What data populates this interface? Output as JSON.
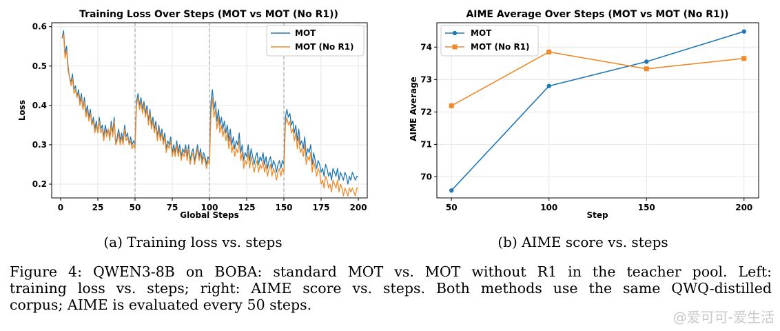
{
  "chart_data": [
    {
      "type": "line",
      "title": "Training Loss Over Steps (MOT vs MOT (No R1))",
      "xlabel": "Global Steps",
      "ylabel": "Loss",
      "xlim": [
        -6,
        206
      ],
      "ylim": [
        0.165,
        0.61
      ],
      "xticks": [
        0,
        25,
        50,
        75,
        100,
        125,
        150,
        175,
        200
      ],
      "yticks": [
        0.2,
        0.3,
        0.4,
        0.5,
        0.6
      ],
      "ytick_labels": [
        "0.2",
        "0.3",
        "0.4",
        "0.5",
        "0.6"
      ],
      "vlines": [
        50,
        100,
        150
      ],
      "grid": true,
      "legend_position": "top-right",
      "x": [
        1,
        2,
        3,
        4,
        5,
        6,
        7,
        8,
        9,
        10,
        11,
        12,
        13,
        14,
        15,
        16,
        17,
        18,
        19,
        20,
        21,
        22,
        23,
        24,
        25,
        26,
        27,
        28,
        29,
        30,
        31,
        32,
        33,
        34,
        35,
        36,
        37,
        38,
        39,
        40,
        41,
        42,
        43,
        44,
        45,
        46,
        47,
        48,
        49,
        50,
        51,
        52,
        53,
        54,
        55,
        56,
        57,
        58,
        59,
        60,
        61,
        62,
        63,
        64,
        65,
        66,
        67,
        68,
        69,
        70,
        71,
        72,
        73,
        74,
        75,
        76,
        77,
        78,
        79,
        80,
        81,
        82,
        83,
        84,
        85,
        86,
        87,
        88,
        89,
        90,
        91,
        92,
        93,
        94,
        95,
        96,
        97,
        98,
        99,
        100,
        101,
        102,
        103,
        104,
        105,
        106,
        107,
        108,
        109,
        110,
        111,
        112,
        113,
        114,
        115,
        116,
        117,
        118,
        119,
        120,
        121,
        122,
        123,
        124,
        125,
        126,
        127,
        128,
        129,
        130,
        131,
        132,
        133,
        134,
        135,
        136,
        137,
        138,
        139,
        140,
        141,
        142,
        143,
        144,
        145,
        146,
        147,
        148,
        149,
        150,
        151,
        152,
        153,
        154,
        155,
        156,
        157,
        158,
        159,
        160,
        161,
        162,
        163,
        164,
        165,
        166,
        167,
        168,
        169,
        170,
        171,
        172,
        173,
        174,
        175,
        176,
        177,
        178,
        179,
        180,
        181,
        182,
        183,
        184,
        185,
        186,
        187,
        188,
        189,
        190,
        191,
        192,
        193,
        194,
        195,
        196,
        197,
        198,
        199,
        200
      ],
      "series": [
        {
          "name": "MOT",
          "color": "#1f77b4",
          "values": [
            0.57,
            0.59,
            0.53,
            0.55,
            0.5,
            0.47,
            0.46,
            0.48,
            0.44,
            0.45,
            0.42,
            0.44,
            0.41,
            0.43,
            0.39,
            0.42,
            0.38,
            0.4,
            0.37,
            0.39,
            0.35,
            0.37,
            0.34,
            0.36,
            0.33,
            0.37,
            0.34,
            0.35,
            0.32,
            0.35,
            0.33,
            0.34,
            0.32,
            0.36,
            0.33,
            0.37,
            0.3,
            0.32,
            0.34,
            0.31,
            0.33,
            0.31,
            0.35,
            0.32,
            0.33,
            0.3,
            0.32,
            0.3,
            0.31,
            0.3,
            0.41,
            0.43,
            0.4,
            0.42,
            0.39,
            0.41,
            0.38,
            0.4,
            0.36,
            0.39,
            0.35,
            0.37,
            0.34,
            0.36,
            0.32,
            0.35,
            0.32,
            0.34,
            0.31,
            0.33,
            0.29,
            0.31,
            0.3,
            0.32,
            0.28,
            0.3,
            0.28,
            0.31,
            0.28,
            0.3,
            0.27,
            0.29,
            0.28,
            0.3,
            0.27,
            0.3,
            0.26,
            0.28,
            0.29,
            0.26,
            0.28,
            0.3,
            0.27,
            0.29,
            0.26,
            0.28,
            0.27,
            0.25,
            0.27,
            0.26,
            0.41,
            0.44,
            0.39,
            0.41,
            0.36,
            0.39,
            0.35,
            0.37,
            0.34,
            0.36,
            0.33,
            0.35,
            0.31,
            0.34,
            0.3,
            0.32,
            0.29,
            0.31,
            0.3,
            0.33,
            0.28,
            0.3,
            0.26,
            0.28,
            0.27,
            0.3,
            0.26,
            0.29,
            0.27,
            0.25,
            0.27,
            0.28,
            0.25,
            0.27,
            0.26,
            0.28,
            0.25,
            0.27,
            0.24,
            0.26,
            0.27,
            0.24,
            0.26,
            0.25,
            0.23,
            0.25,
            0.26,
            0.24,
            0.26,
            0.25,
            0.37,
            0.39,
            0.37,
            0.38,
            0.35,
            0.36,
            0.33,
            0.35,
            0.31,
            0.34,
            0.3,
            0.31,
            0.29,
            0.32,
            0.27,
            0.29,
            0.28,
            0.3,
            0.25,
            0.28,
            0.26,
            0.24,
            0.26,
            0.25,
            0.23,
            0.24,
            0.22,
            0.25,
            0.24,
            0.22,
            0.23,
            0.21,
            0.24,
            0.23,
            0.22,
            0.24,
            0.21,
            0.23,
            0.22,
            0.21,
            0.23,
            0.22,
            0.2,
            0.22,
            0.21,
            0.23,
            0.22,
            0.21,
            0.22,
            0.22
          ]
        },
        {
          "name": "MOT (No R1)",
          "color": "#ee8a2a",
          "values": [
            0.57,
            0.58,
            0.52,
            0.54,
            0.49,
            0.47,
            0.45,
            0.47,
            0.43,
            0.44,
            0.42,
            0.43,
            0.4,
            0.42,
            0.39,
            0.41,
            0.37,
            0.39,
            0.36,
            0.38,
            0.35,
            0.36,
            0.33,
            0.35,
            0.33,
            0.36,
            0.33,
            0.34,
            0.31,
            0.34,
            0.32,
            0.34,
            0.31,
            0.35,
            0.32,
            0.36,
            0.3,
            0.31,
            0.33,
            0.3,
            0.32,
            0.3,
            0.34,
            0.31,
            0.32,
            0.3,
            0.31,
            0.29,
            0.3,
            0.29,
            0.4,
            0.42,
            0.39,
            0.41,
            0.38,
            0.4,
            0.37,
            0.39,
            0.35,
            0.38,
            0.34,
            0.36,
            0.33,
            0.35,
            0.31,
            0.34,
            0.31,
            0.33,
            0.3,
            0.32,
            0.28,
            0.3,
            0.29,
            0.31,
            0.27,
            0.29,
            0.27,
            0.3,
            0.27,
            0.29,
            0.26,
            0.28,
            0.27,
            0.29,
            0.26,
            0.29,
            0.25,
            0.27,
            0.28,
            0.25,
            0.27,
            0.29,
            0.26,
            0.28,
            0.25,
            0.27,
            0.26,
            0.24,
            0.26,
            0.25,
            0.38,
            0.42,
            0.37,
            0.39,
            0.34,
            0.37,
            0.33,
            0.35,
            0.32,
            0.34,
            0.31,
            0.33,
            0.29,
            0.32,
            0.28,
            0.3,
            0.27,
            0.29,
            0.28,
            0.31,
            0.26,
            0.28,
            0.24,
            0.26,
            0.25,
            0.28,
            0.24,
            0.27,
            0.25,
            0.23,
            0.25,
            0.26,
            0.23,
            0.25,
            0.24,
            0.26,
            0.23,
            0.25,
            0.22,
            0.24,
            0.25,
            0.22,
            0.24,
            0.23,
            0.21,
            0.23,
            0.24,
            0.22,
            0.24,
            0.23,
            0.35,
            0.37,
            0.35,
            0.36,
            0.33,
            0.34,
            0.31,
            0.33,
            0.29,
            0.32,
            0.28,
            0.29,
            0.27,
            0.3,
            0.25,
            0.27,
            0.26,
            0.28,
            0.23,
            0.26,
            0.24,
            0.22,
            0.24,
            0.23,
            0.2,
            0.21,
            0.19,
            0.22,
            0.21,
            0.19,
            0.2,
            0.18,
            0.21,
            0.2,
            0.19,
            0.21,
            0.18,
            0.2,
            0.19,
            0.17,
            0.19,
            0.18,
            0.17,
            0.19,
            0.18,
            0.19,
            0.18,
            0.17,
            0.19,
            0.19
          ]
        }
      ]
    },
    {
      "type": "line",
      "title": "AIME Average Over Steps (MOT vs MOT (No R1))",
      "xlabel": "Step",
      "ylabel": "AIME Average",
      "xlim": [
        42.5,
        207.5
      ],
      "ylim": [
        69.35,
        74.75
      ],
      "xticks": [
        50,
        100,
        150,
        200
      ],
      "yticks": [
        70,
        71,
        72,
        73,
        74
      ],
      "grid": true,
      "legend_position": "top-left",
      "x": [
        50,
        100,
        150,
        200
      ],
      "series": [
        {
          "name": "MOT",
          "color": "#1f77b4",
          "marker": "circle",
          "values": [
            69.58,
            72.8,
            73.55,
            74.48
          ]
        },
        {
          "name": "MOT (No R1)",
          "color": "#ee8a2a",
          "marker": "square",
          "values": [
            72.19,
            73.85,
            73.33,
            73.65
          ]
        }
      ]
    }
  ],
  "subcaptions": [
    "(a) Training loss vs. steps",
    "(b) AIME score vs. steps"
  ],
  "caption": {
    "line1": "Figure 4: QWEN3-8B on BOBA: standard MOT vs. MOT without R1 in the teacher pool. Left:",
    "line2": "training loss vs. steps; right: AIME score vs. steps. Both methods use the same QWQ-distilled",
    "line3": "corpus; AIME is evaluated every 50 steps."
  },
  "watermark": "@爱可可-爱生活"
}
